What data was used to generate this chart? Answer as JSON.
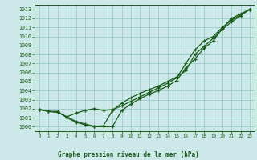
{
  "xlabel": "Graphe pression niveau de la mer (hPa)",
  "xlim": [
    -0.5,
    23.5
  ],
  "ylim": [
    999.5,
    1013.5
  ],
  "yticks": [
    1000,
    1001,
    1002,
    1003,
    1004,
    1005,
    1006,
    1007,
    1008,
    1009,
    1010,
    1011,
    1012,
    1013
  ],
  "xticks": [
    0,
    1,
    2,
    3,
    4,
    5,
    6,
    7,
    8,
    9,
    10,
    11,
    12,
    13,
    14,
    15,
    16,
    17,
    18,
    19,
    20,
    21,
    22,
    23
  ],
  "bg_color": "#cce8e8",
  "grid_color": "#99cccc",
  "line_color": "#1a5c1a",
  "line1_x": [
    0,
    1,
    2,
    3,
    4,
    5,
    6,
    7,
    8,
    9,
    10,
    11,
    12,
    13,
    14,
    15,
    16,
    17,
    18,
    19,
    20,
    21,
    22,
    23
  ],
  "line1_y": [
    1001.9,
    1001.7,
    1001.7,
    1001.0,
    1000.5,
    1000.2,
    1000.0,
    1000.0,
    1000.0,
    1001.8,
    1002.5,
    1003.1,
    1003.6,
    1004.0,
    1004.5,
    1005.1,
    1006.5,
    1007.5,
    1008.7,
    1009.5,
    1010.9,
    1012.0,
    1012.5,
    1013.0
  ],
  "line2_x": [
    0,
    1,
    2,
    3,
    4,
    5,
    6,
    7,
    8,
    9,
    10,
    11,
    12,
    13,
    14,
    15,
    16,
    17,
    18,
    19,
    20,
    21,
    22,
    23
  ],
  "line2_y": [
    1001.9,
    1001.7,
    1001.6,
    1001.1,
    1001.5,
    1001.8,
    1002.0,
    1001.8,
    1001.9,
    1002.3,
    1002.8,
    1003.3,
    1003.8,
    1004.3,
    1004.8,
    1005.4,
    1007.0,
    1008.5,
    1009.5,
    1010.0,
    1011.0,
    1011.8,
    1012.4,
    1013.0
  ],
  "line3_x": [
    0,
    1,
    2,
    3,
    4,
    5,
    6,
    7,
    8,
    9,
    10,
    11,
    12,
    13,
    14,
    15,
    16,
    17,
    18,
    19,
    20,
    21,
    22,
    23
  ],
  "line3_y": [
    1001.9,
    1001.7,
    1001.6,
    1001.1,
    1000.6,
    1000.3,
    1000.05,
    1000.1,
    1001.8,
    1002.6,
    1003.2,
    1003.7,
    1004.1,
    1004.5,
    1005.0,
    1005.5,
    1006.2,
    1008.0,
    1008.9,
    1009.8,
    1010.8,
    1011.6,
    1012.3,
    1013.0
  ]
}
